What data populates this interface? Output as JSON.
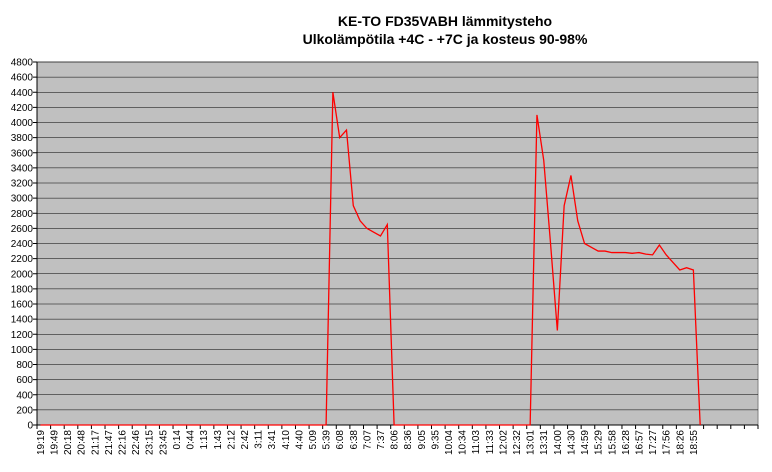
{
  "chart_data": {
    "type": "line",
    "title": "KE-TO FD35VABH lämmitysteho",
    "subtitle": "Ulkolämpötila  +4C - +7C ja kosteus 90-98%",
    "categories": [
      "19:19",
      null,
      "19:49",
      null,
      "20:18",
      null,
      "20:48",
      null,
      "21:17",
      null,
      "21:47",
      null,
      "22:16",
      null,
      "22:46",
      null,
      "23:15",
      null,
      "23:45",
      null,
      "0:14",
      null,
      "0:44",
      null,
      "1:13",
      null,
      "1:43",
      null,
      "2:12",
      null,
      "2:42",
      null,
      "3:11",
      null,
      "3:41",
      null,
      "4:10",
      null,
      "4:40",
      null,
      "5:09",
      null,
      "5:39",
      null,
      "6:08",
      null,
      "6:38",
      null,
      "7:07",
      null,
      "7:37",
      null,
      "8:06",
      null,
      "8:36",
      null,
      "9:05",
      null,
      "9:35",
      null,
      "10:04",
      null,
      "10:34",
      null,
      "11:03",
      null,
      "11:33",
      null,
      "12:02",
      null,
      "12:32",
      null,
      "13:01",
      null,
      "13:31",
      null,
      "14:00",
      null,
      "14:30",
      null,
      "14:59",
      null,
      "15:29",
      null,
      "15:58",
      null,
      "16:28",
      null,
      "16:57",
      null,
      "17:27",
      null,
      "17:56",
      null,
      "18:26",
      null,
      "18:55",
      null,
      null,
      null,
      null,
      null,
      null,
      null,
      null,
      null
    ],
    "series": [
      {
        "name": "lämmitysteho",
        "color": "#ff0000",
        "values": [
          0,
          0,
          0,
          0,
          0,
          0,
          0,
          0,
          0,
          0,
          0,
          0,
          0,
          0,
          0,
          0,
          0,
          0,
          0,
          0,
          0,
          0,
          0,
          0,
          0,
          0,
          0,
          0,
          0,
          0,
          0,
          0,
          0,
          0,
          0,
          0,
          0,
          0,
          0,
          0,
          0,
          0,
          0,
          4400,
          3800,
          3900,
          2900,
          2700,
          2600,
          2550,
          2500,
          2650,
          0,
          0,
          0,
          0,
          0,
          0,
          0,
          0,
          0,
          0,
          0,
          0,
          0,
          0,
          0,
          0,
          0,
          0,
          0,
          0,
          0,
          4100,
          3500,
          2400,
          1250,
          2900,
          3300,
          2700,
          2400,
          2350,
          2300,
          2300,
          2280,
          2280,
          2280,
          2270,
          2280,
          2260,
          2250,
          2380,
          2250,
          2150,
          2050,
          2080,
          2050,
          0,
          null,
          null,
          null,
          null,
          null,
          null,
          null,
          null
        ]
      }
    ],
    "ylim": [
      0,
      4800
    ],
    "yticks": [
      0,
      200,
      400,
      600,
      800,
      1000,
      1200,
      1400,
      1600,
      1800,
      2000,
      2200,
      2400,
      2600,
      2800,
      3000,
      3200,
      3400,
      3600,
      3800,
      4000,
      4200,
      4400,
      4600,
      4800
    ],
    "grid": true,
    "plot_background": "#c0c0c0"
  }
}
